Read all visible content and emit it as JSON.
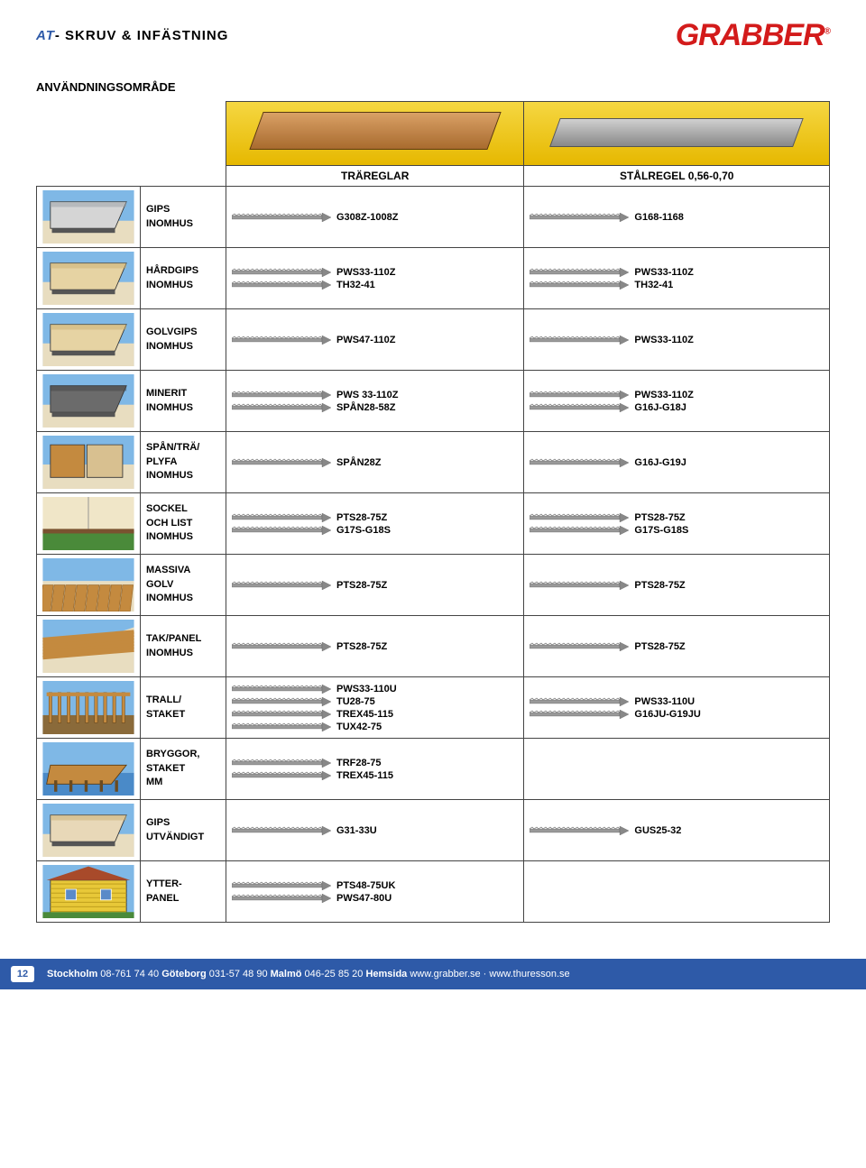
{
  "header": {
    "left_prefix": "AT",
    "left_text": "- SKRUV & INFÄSTNING",
    "brand": "GRABBER",
    "reg": "®"
  },
  "section_title": "ANVÄNDNINGSOMRÅDE",
  "columns": {
    "a": "TRÄREGLAR",
    "b": "STÅLREGEL 0,56-0,70"
  },
  "colors": {
    "yellow": "#f0c818",
    "sky": "#7fb8e6",
    "wall": "#e8ddc0",
    "wood": "#c48a3f",
    "grey": "#9aa0a6",
    "green": "#4a8a3a",
    "dark": "#333333"
  },
  "rows": [
    {
      "label_lines": [
        "GIPS",
        "INOMHUS"
      ],
      "col_a": [
        "G308Z-1008Z"
      ],
      "col_b": [
        "G168-1168"
      ],
      "illus": "panel_grey"
    },
    {
      "label_lines": [
        "HÅRDGIPS",
        "INOMHUS"
      ],
      "col_a": [
        "PWS33-110Z",
        "TH32-41"
      ],
      "col_b": [
        "PWS33-110Z",
        "TH32-41"
      ],
      "illus": "panel_tan"
    },
    {
      "label_lines": [
        "GOLVGIPS",
        "INOMHUS"
      ],
      "col_a": [
        "PWS47-110Z"
      ],
      "col_b": [
        "PWS33-110Z"
      ],
      "illus": "floor_tan"
    },
    {
      "label_lines": [
        "MINERIT",
        "INOMHUS"
      ],
      "col_a": [
        "PWS 33-110Z",
        "SPÅN28-58Z"
      ],
      "col_b": [
        "PWS33-110Z",
        "G16J-G18J"
      ],
      "illus": "panel_dark"
    },
    {
      "label_lines": [
        "SPÅN/TRÄ/",
        "PLYFA",
        "INOMHUS"
      ],
      "col_a": [
        "SPÅN28Z"
      ],
      "col_b": [
        "G16J-G19J"
      ],
      "illus": "panel_wood"
    },
    {
      "label_lines": [
        "SOCKEL",
        "OCH LIST",
        "INOMHUS"
      ],
      "col_a": [
        "PTS28-75Z",
        "G17S-G18S"
      ],
      "col_b": [
        "PTS28-75Z",
        "G17S-G18S"
      ],
      "illus": "room_green"
    },
    {
      "label_lines": [
        "MASSIVA",
        "GOLV",
        "INOMHUS"
      ],
      "col_a": [
        "PTS28-75Z"
      ],
      "col_b": [
        "PTS28-75Z"
      ],
      "illus": "floor_wood"
    },
    {
      "label_lines": [
        "TAK/PANEL",
        "INOMHUS"
      ],
      "col_a": [
        "PTS28-75Z"
      ],
      "col_b": [
        "PTS28-75Z"
      ],
      "illus": "roof_wood"
    },
    {
      "label_lines": [
        "TRALL/",
        "STAKET"
      ],
      "col_a": [
        "PWS33-110U",
        "TU28-75",
        "TREX45-115",
        "TUX42-75"
      ],
      "col_b": [
        "PWS33-110U",
        "G16JU-G19JU"
      ],
      "illus": "deck_frame"
    },
    {
      "label_lines": [
        "BRYGGOR,",
        "STAKET",
        "MM"
      ],
      "col_a": [
        "TRF28-75",
        "TREX45-115"
      ],
      "col_b": [],
      "illus": "dock"
    },
    {
      "label_lines": [
        "GIPS",
        "UTVÄNDIGT"
      ],
      "col_a": [
        "G31-33U"
      ],
      "col_b": [
        "GUS25-32"
      ],
      "illus": "panel_ext"
    },
    {
      "label_lines": [
        "YTTER-",
        "PANEL"
      ],
      "col_a": [
        "PTS48-75UK",
        "PWS47-80U"
      ],
      "col_b": [],
      "illus": "house_yellow"
    }
  ],
  "footer": {
    "page": "12",
    "text_parts": {
      "stockholm_label": "Stockholm",
      "stockholm_num": " 08-761 74 40 ",
      "goteborg_label": "Göteborg",
      "goteborg_num": " 031-57 48 90 ",
      "malmo_label": "Malmö",
      "malmo_num": " 046-25 85 20 ",
      "hemsida_label": "Hemsida",
      "url1": " www.grabber.se ",
      "sep": "·",
      "url2": " www.thuresson.se"
    }
  }
}
